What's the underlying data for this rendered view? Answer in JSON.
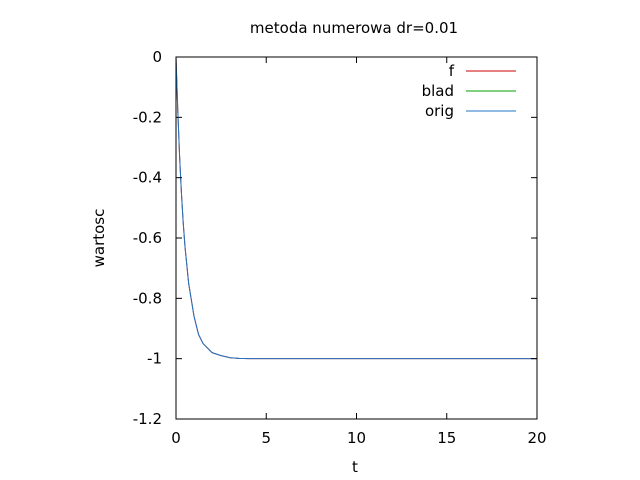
{
  "chart_data": {
    "type": "line",
    "title": "metoda numerowa dr=0.01",
    "xlabel": "t",
    "ylabel": "wartosc",
    "xlim": [
      0,
      20
    ],
    "ylim": [
      -1.2,
      0
    ],
    "xticks": [
      0,
      5,
      10,
      15,
      20
    ],
    "xtick_labels": [
      "0",
      "5",
      "10",
      "15",
      "20"
    ],
    "yticks": [
      0,
      -0.2,
      -0.4,
      -0.6,
      -0.8,
      -1,
      -1.2
    ],
    "ytick_labels": [
      "0",
      "-0.2",
      "-0.4",
      "-0.6",
      "-0.8",
      "-1",
      "-1.2"
    ],
    "grid": false,
    "legend_position": "top-right",
    "series": [
      {
        "name": "f",
        "color": "#cc0000",
        "x": [
          0,
          0.1,
          0.2,
          0.3,
          0.4,
          0.5,
          0.7,
          1.0,
          1.25,
          1.5,
          2.0,
          2.5,
          3.0,
          3.5,
          4.0,
          5.0,
          10,
          15,
          20
        ],
        "y": [
          0,
          -0.18,
          -0.33,
          -0.45,
          -0.55,
          -0.63,
          -0.75,
          -0.86,
          -0.92,
          -0.95,
          -0.98,
          -0.99,
          -0.997,
          -0.999,
          -1.0,
          -1.0,
          -1.0,
          -1.0,
          -1.0
        ]
      },
      {
        "name": "blad",
        "color": "#00a000",
        "x": [
          0,
          20
        ],
        "y": [
          0,
          0
        ]
      },
      {
        "name": "orig",
        "color": "#1f77c4",
        "x": [
          0,
          0.1,
          0.2,
          0.3,
          0.4,
          0.5,
          0.7,
          1.0,
          1.25,
          1.5,
          2.0,
          2.5,
          3.0,
          3.5,
          4.0,
          5.0,
          10,
          15,
          20
        ],
        "y": [
          0,
          -0.18,
          -0.33,
          -0.45,
          -0.55,
          -0.63,
          -0.75,
          -0.86,
          -0.92,
          -0.95,
          -0.98,
          -0.99,
          -0.997,
          -0.999,
          -1.0,
          -1.0,
          -1.0,
          -1.0,
          -1.0
        ]
      }
    ]
  }
}
